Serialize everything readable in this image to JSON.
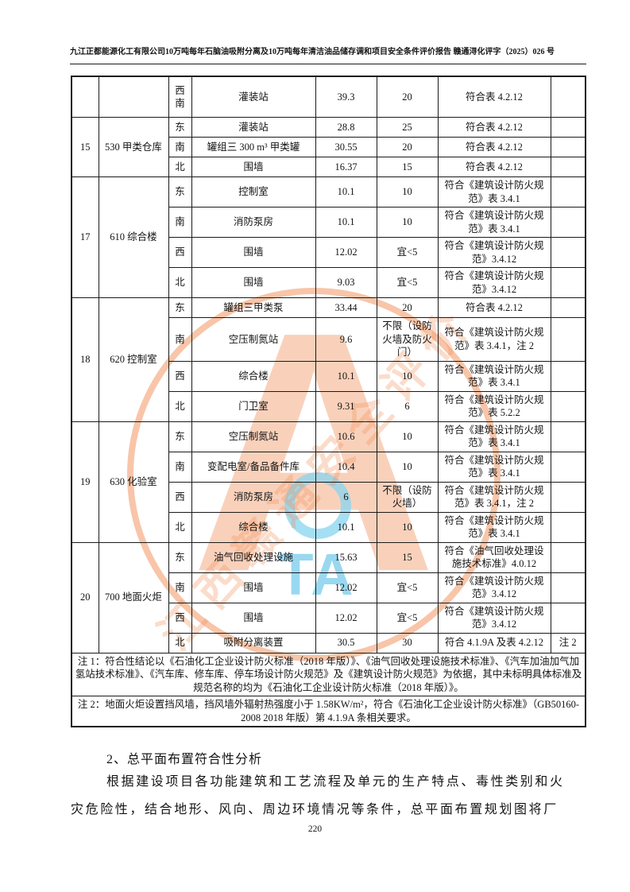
{
  "header": {
    "title": "九江正都能源化工有限公司10万吨每年石脑油吸附分离及10万吨每年清洁油品储存调和项目安全条件评价报告  赣通浔化评字（2025）026 号"
  },
  "table": {
    "groups": [
      {
        "id": "",
        "name": "",
        "rows": [
          {
            "dir": "西南",
            "target": "灌装站",
            "actual": "39.3",
            "required": "20",
            "conclusion": "符合表 4.2.12",
            "note": ""
          }
        ]
      },
      {
        "id": "15",
        "name": "530 甲类仓库",
        "rows": [
          {
            "dir": "东",
            "target": "灌装站",
            "actual": "28.8",
            "required": "25",
            "conclusion": "符合表 4.2.12",
            "note": ""
          },
          {
            "dir": "南",
            "target": "罐组三 300 m³ 甲类罐",
            "actual": "30.55",
            "required": "20",
            "conclusion": "符合表 4.2.12",
            "note": ""
          },
          {
            "dir": "北",
            "target": "围墙",
            "actual": "16.37",
            "required": "15",
            "conclusion": "符合表 4.2.12",
            "note": ""
          }
        ]
      },
      {
        "id": "17",
        "name": "610 综合楼",
        "rows": [
          {
            "dir": "东",
            "target": "控制室",
            "actual": "10.1",
            "required": "10",
            "conclusion": "符合《建筑设计防火规范》表 3.4.1",
            "note": ""
          },
          {
            "dir": "南",
            "target": "消防泵房",
            "actual": "10.1",
            "required": "10",
            "conclusion": "符合《建筑设计防火规范》表 3.4.1",
            "note": ""
          },
          {
            "dir": "西",
            "target": "围墙",
            "actual": "12.02",
            "required": "宜<5",
            "conclusion": "符合《建筑设计防火规范》3.4.12",
            "note": ""
          },
          {
            "dir": "北",
            "target": "围墙",
            "actual": "9.03",
            "required": "宜<5",
            "conclusion": "符合《建筑设计防火规范》3.4.12",
            "note": ""
          }
        ]
      },
      {
        "id": "18",
        "name": "620 控制室",
        "rows": [
          {
            "dir": "东",
            "target": "罐组三甲类泵",
            "actual": "33.44",
            "required": "20",
            "conclusion": "符合表 4.2.12",
            "note": ""
          },
          {
            "dir": "南",
            "target": "空压制氮站",
            "actual": "9.6",
            "required": "不限（设防火墙及防火门）",
            "conclusion": "符合《建筑设计防火规范》表 3.4.1，注 2",
            "note": ""
          },
          {
            "dir": "西",
            "target": "综合楼",
            "actual": "10.1",
            "required": "10",
            "conclusion": "符合《建筑设计防火规范》表 3.4.1",
            "note": ""
          },
          {
            "dir": "北",
            "target": "门卫室",
            "actual": "9.31",
            "required": "6",
            "conclusion": "符合《建筑设计防火规范》表 5.2.2",
            "note": ""
          }
        ]
      },
      {
        "id": "19",
        "name": "630 化验室",
        "rows": [
          {
            "dir": "东",
            "target": "空压制氮站",
            "actual": "10.6",
            "required": "10",
            "conclusion": "符合《建筑设计防火规范》表 3.4.1",
            "note": ""
          },
          {
            "dir": "南",
            "target": "变配电室/备品备件库",
            "actual": "10.4",
            "required": "10",
            "conclusion": "符合《建筑设计防火规范》表 3.4.1",
            "note": ""
          },
          {
            "dir": "西",
            "target": "消防泵房",
            "actual": "6",
            "required": "不限（设防火墙）",
            "conclusion": "符合《建筑设计防火规范》表 3.4.1，注 2",
            "note": ""
          },
          {
            "dir": "北",
            "target": "综合楼",
            "actual": "10.1",
            "required": "10",
            "conclusion": "符合《建筑设计防火规范》表 3.4.1",
            "note": ""
          }
        ]
      },
      {
        "id": "20",
        "name": "700 地面火炬",
        "rows": [
          {
            "dir": "东",
            "target": "油气回收处理设施",
            "actual": "15.63",
            "required": "15",
            "conclusion": "符合《油气回收处理设施技术标准》4.0.12",
            "note": ""
          },
          {
            "dir": "南",
            "target": "围墙",
            "actual": "12.02",
            "required": "宜<5",
            "conclusion": "符合《建筑设计防火规范》3.4.12",
            "note": ""
          },
          {
            "dir": "西",
            "target": "围墙",
            "actual": "12.02",
            "required": "宜<5",
            "conclusion": "符合《建筑设计防火规范》3.4.12",
            "note": ""
          },
          {
            "dir": "北",
            "target": "吸附分离装置",
            "actual": "30.5",
            "required": "30",
            "conclusion": "符合 4.1.9A 及表 4.2.12",
            "note": "注 2"
          }
        ]
      }
    ],
    "notes": [
      "注 1：符合性结论以《石油化工企业设计防火标准（2018 年版）》、《油气回收处理设施技术标准》、《汽车加油加气加氢站技术标准》、《汽车库、修车库、停车场设计防火规范》及《建筑设计防火规范》为依据，其中未标明具体标准及规范名称的均为《石油化工企业设计防火标准（2018 年版）》。",
      "注 2：地面火炬设置挡风墙，挡风墙外辐射热强度小于 1.58KW/m²，符合《石油化工企业设计防火标准》（GB50160-2008 2018 年版）第 4.1.9A 条相关要求。"
    ]
  },
  "body": {
    "heading": "2、总平面布置符合性分析",
    "para_lines": [
      "根据建设项目各功能建筑和工艺流程及单元的生产特点、毒性类别和火",
      "灾危险性，结合地形、风向、周边环境情况等条件，总平面布置规划图将厂"
    ]
  },
  "footer": {
    "page_number": "220"
  },
  "watermark": {
    "logo_letter": "A",
    "blue_letters": "TA",
    "diagonal_text": "江西赣通安全评价",
    "orange": "#f18b54",
    "blue": "#80cEec"
  }
}
